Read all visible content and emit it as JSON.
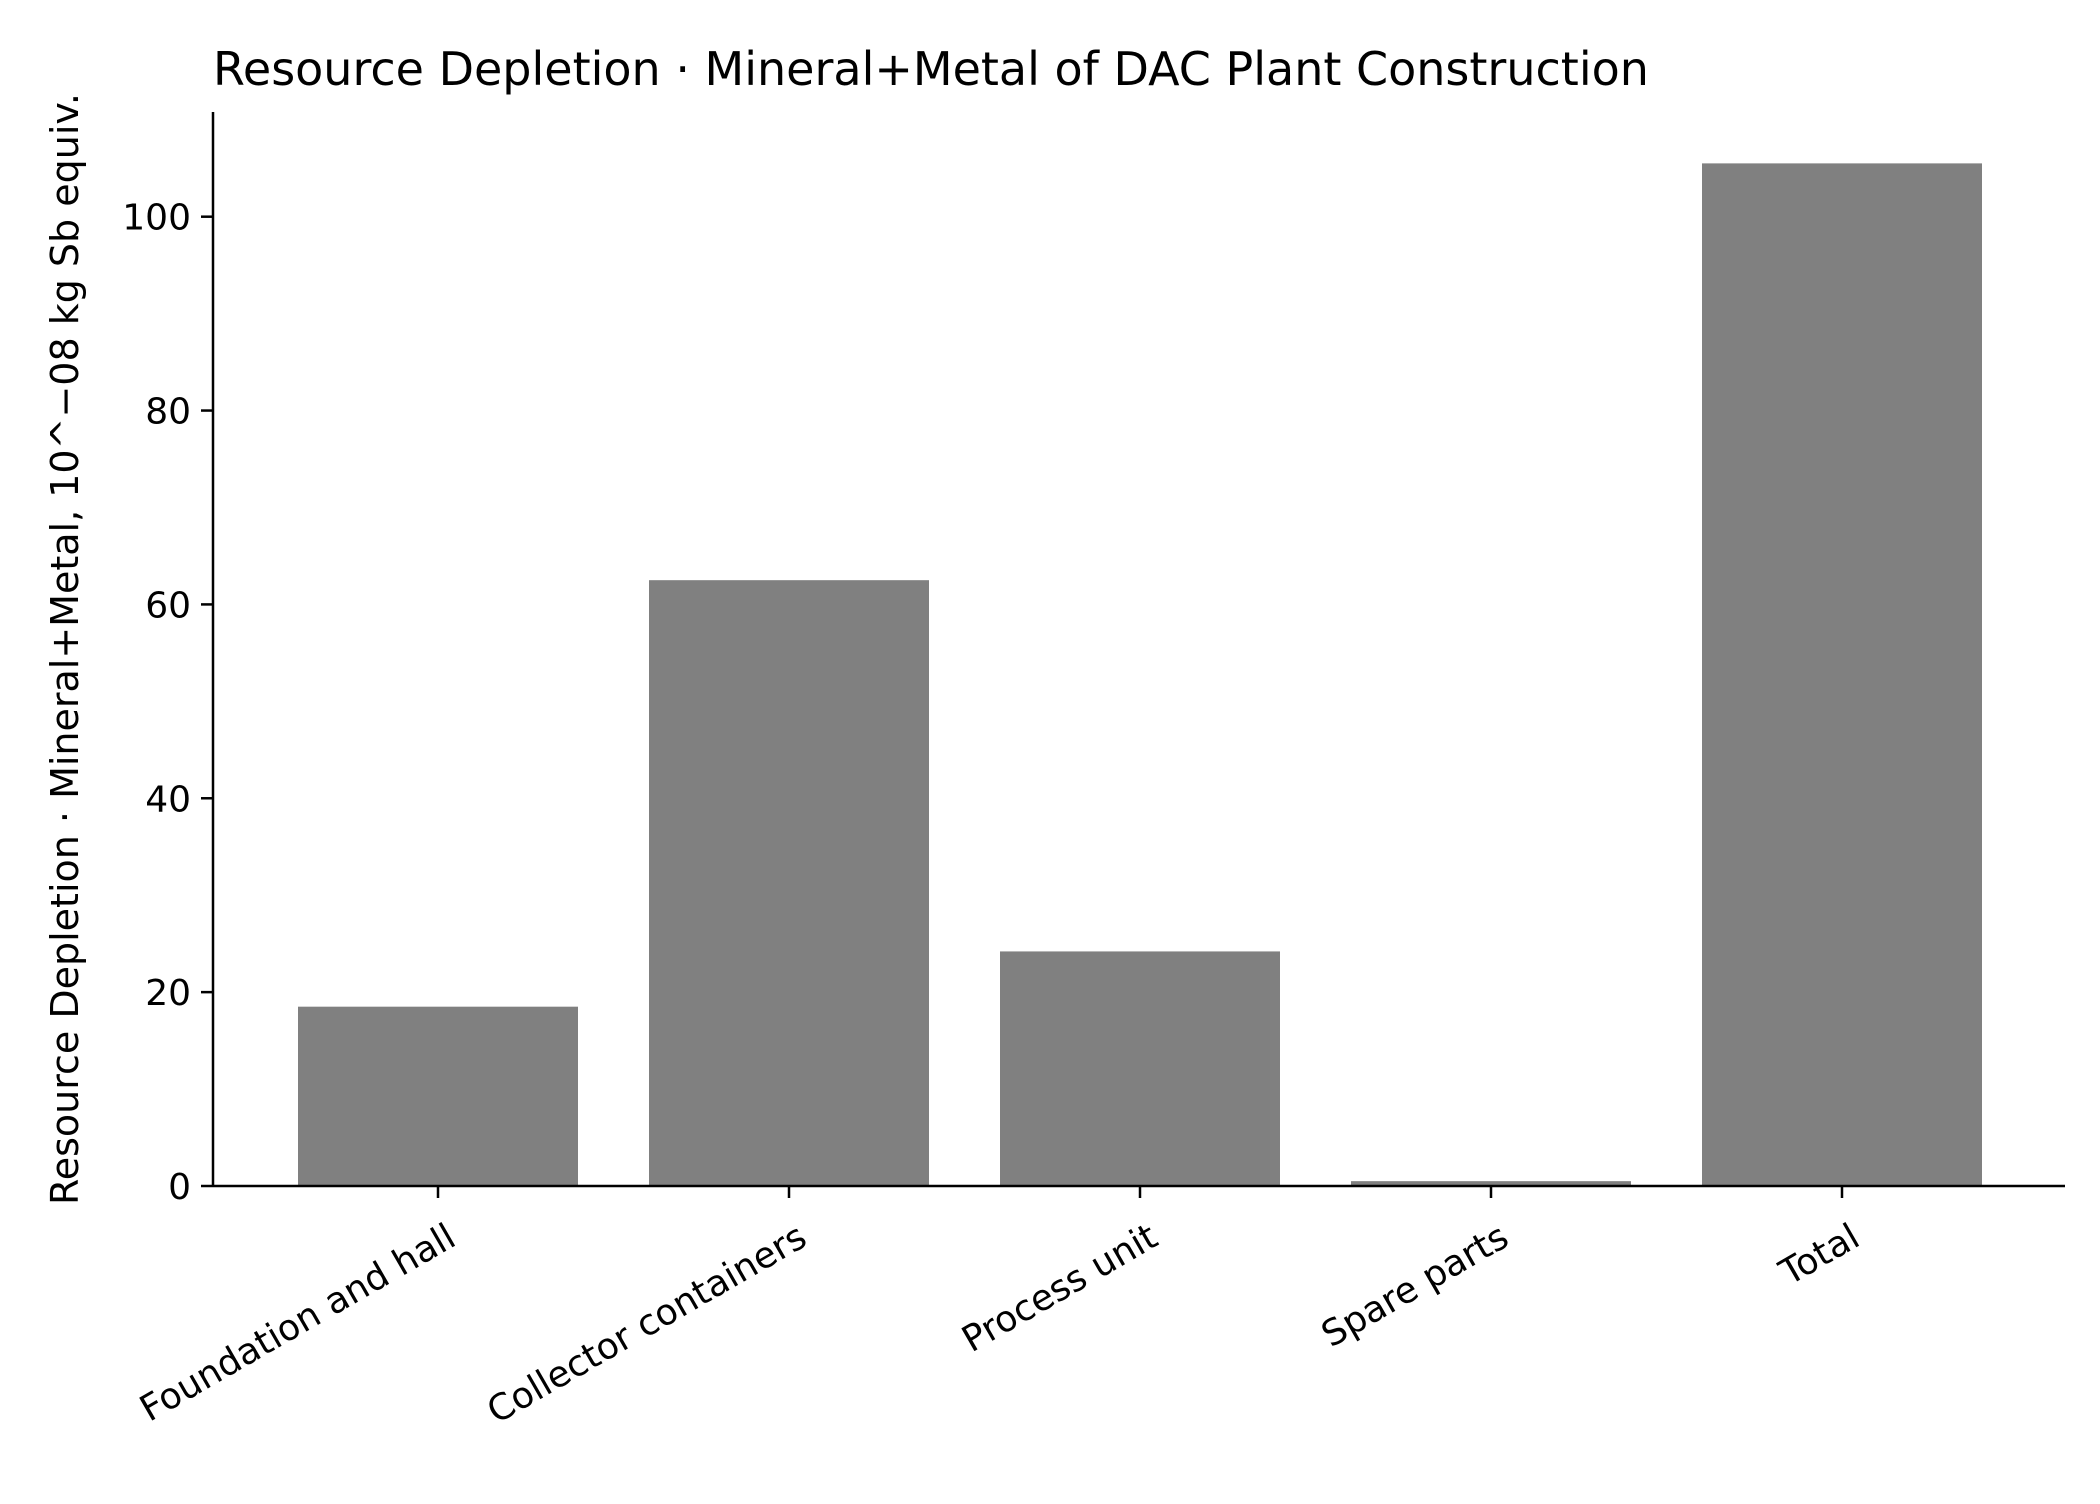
{
  "chart_data": {
    "type": "bar",
    "title": "Resource Depletion · Mineral+Metal of DAC Plant Construction",
    "xlabel": "",
    "ylabel": "Resource Depletion · Mineral+Metal, 10^−08 kg Sb equiv.",
    "categories": [
      "Foundation and hall",
      "Collector containers",
      "Process unit",
      "Spare parts",
      "Total"
    ],
    "values": [
      18.5,
      62.5,
      24.2,
      0.5,
      105.5
    ],
    "ylim": [
      0,
      110.8
    ],
    "yticks": [
      0,
      20,
      40,
      60,
      80,
      100
    ],
    "grid": false,
    "legend": "none",
    "bar_color": "#808080",
    "axis_color": "#000000"
  }
}
